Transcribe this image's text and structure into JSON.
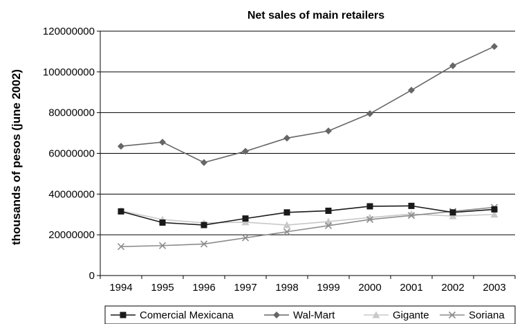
{
  "chart_data": {
    "type": "line",
    "title": "Net sales of main retailers",
    "xlabel": "",
    "ylabel": "thousands of pesos (june 2002)",
    "categories": [
      "1994",
      "1995",
      "1996",
      "1997",
      "1998",
      "1999",
      "2000",
      "2001",
      "2002",
      "2003"
    ],
    "ylim": [
      0,
      120000000
    ],
    "yticks": [
      "0",
      "20000000",
      "40000000",
      "60000000",
      "80000000",
      "100000000",
      "120000000"
    ],
    "grid": "horizontal",
    "legend_position": "bottom",
    "series": [
      {
        "name": "Comercial Mexicana",
        "marker": "square",
        "color": "#1a1a1a",
        "values": [
          31500000,
          26000000,
          24800000,
          28000000,
          31000000,
          31800000,
          34000000,
          34200000,
          31000000,
          32500000
        ]
      },
      {
        "name": "Wal-Mart",
        "marker": "diamond",
        "color": "#666666",
        "values": [
          63500000,
          65500000,
          55500000,
          61000000,
          67500000,
          71000000,
          79500000,
          91000000,
          103000000,
          112500000
        ]
      },
      {
        "name": "Gigante",
        "marker": "triangle",
        "color": "#c8c8c8",
        "values": [
          31800000,
          27500000,
          25800000,
          26200000,
          24800000,
          26500000,
          28500000,
          30200000,
          29200000,
          30000000
        ]
      },
      {
        "name": "Soriana",
        "marker": "x",
        "color": "#8c8c8c",
        "values": [
          14200000,
          14700000,
          15500000,
          18500000,
          21500000,
          24500000,
          27500000,
          29500000,
          31500000,
          33500000
        ]
      }
    ]
  }
}
